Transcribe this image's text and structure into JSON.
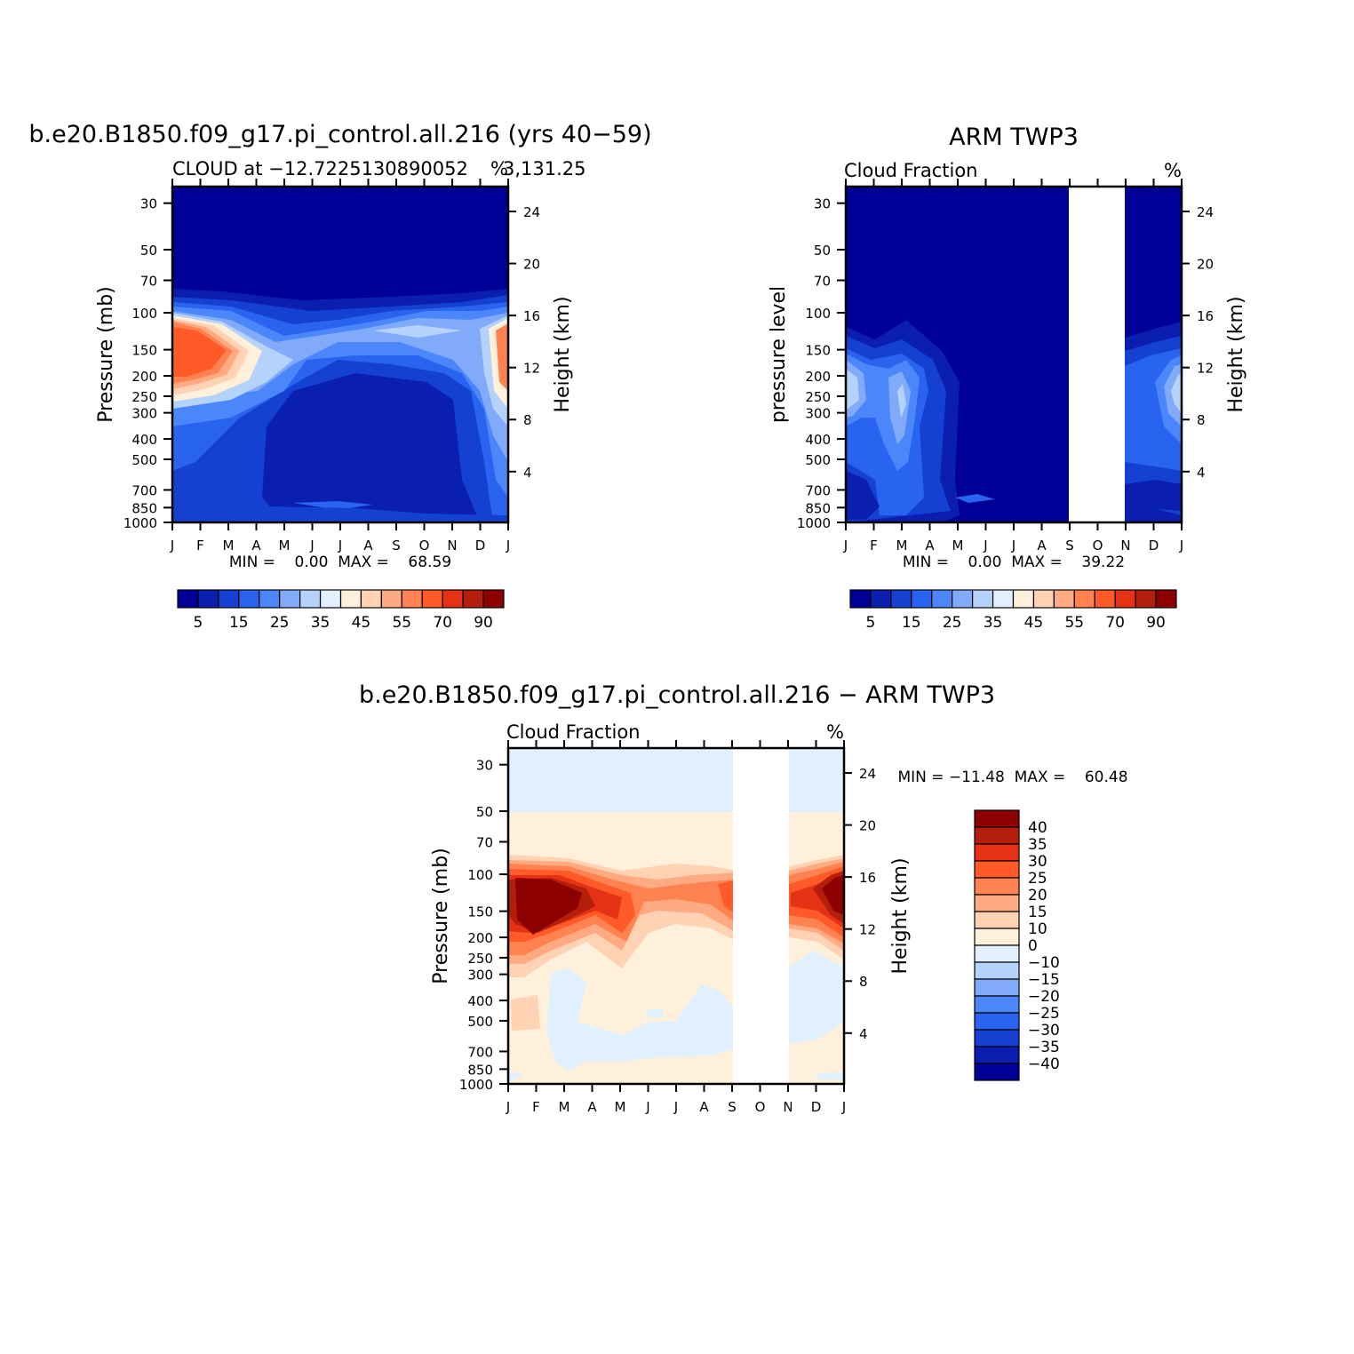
{
  "chart_data": [
    {
      "type": "heatmap",
      "title": "b.e20.B1850.f09_g17.pi_control.all.216 (yrs 40−59)",
      "left_label": "CLOUD at −12.7225130890052",
      "right_label": "%",
      "coords_suffix": "3,131.25",
      "ylabel": "Pressure (mb)",
      "y2label": "Height (km)",
      "x_ticks": [
        "J",
        "F",
        "M",
        "A",
        "M",
        "J",
        "J",
        "A",
        "S",
        "O",
        "N",
        "D",
        "J"
      ],
      "y_ticks": [
        30,
        50,
        70,
        100,
        150,
        200,
        250,
        300,
        400,
        500,
        700,
        850,
        1000
      ],
      "y2_ticks": [
        24,
        20,
        16,
        12,
        8,
        4
      ],
      "stats": "MIN =    0.00  MAX =    68.59",
      "colorbar": {
        "labels": [
          "5",
          "15",
          "25",
          "35",
          "45",
          "55",
          "70",
          "90"
        ],
        "colors": [
          "#000096",
          "#0a1eaf",
          "#1541d2",
          "#2864f0",
          "#4b87fa",
          "#82aafa",
          "#b4d2fa",
          "#e1f0ff",
          "#fff0dc",
          "#ffd2b4",
          "#ffaa82",
          "#ff8250",
          "#ff5a28",
          "#e63214",
          "#b41e0a",
          "#8c0000"
        ]
      },
      "missing_months": []
    },
    {
      "type": "heatmap",
      "title": "ARM TWP3",
      "left_label": "Cloud Fraction",
      "right_label": "%",
      "ylabel": "pressure level",
      "y2label": "Height (km)",
      "x_ticks": [
        "J",
        "F",
        "M",
        "A",
        "M",
        "J",
        "J",
        "A",
        "S",
        "O",
        "N",
        "D",
        "J"
      ],
      "y_ticks": [
        30,
        50,
        70,
        100,
        150,
        200,
        250,
        300,
        400,
        500,
        700,
        850,
        1000
      ],
      "y2_ticks": [
        24,
        20,
        16,
        12,
        8,
        4
      ],
      "stats": "MIN =    0.00  MAX =    39.22",
      "colorbar": {
        "labels": [
          "5",
          "15",
          "25",
          "35",
          "45",
          "55",
          "70",
          "90"
        ],
        "colors": [
          "#000096",
          "#0a1eaf",
          "#1541d2",
          "#2864f0",
          "#4b87fa",
          "#82aafa",
          "#b4d2fa",
          "#e1f0ff",
          "#fff0dc",
          "#ffd2b4",
          "#ffaa82",
          "#ff8250",
          "#ff5a28",
          "#e63214",
          "#b41e0a",
          "#8c0000"
        ]
      },
      "missing_months": [
        "Sep",
        "Oct"
      ]
    },
    {
      "type": "heatmap",
      "title": "b.e20.B1850.f09_g17.pi_control.all.216 − ARM TWP3",
      "left_label": "Cloud Fraction",
      "right_label": "%",
      "ylabel": "Pressure (mb)",
      "y2label": "Height (km)",
      "x_ticks": [
        "J",
        "F",
        "M",
        "A",
        "M",
        "J",
        "J",
        "A",
        "S",
        "O",
        "N",
        "D",
        "J"
      ],
      "y_ticks": [
        30,
        50,
        70,
        100,
        150,
        200,
        250,
        300,
        400,
        500,
        700,
        850,
        1000
      ],
      "y2_ticks": [
        24,
        20,
        16,
        12,
        8,
        4
      ],
      "stats": "MIN = −11.48  MAX =    60.48",
      "colorbar": {
        "labels": [
          "40",
          "35",
          "30",
          "25",
          "20",
          "15",
          "10",
          "0",
          "−10",
          "−15",
          "−20",
          "−25",
          "−30",
          "−35",
          "−40"
        ],
        "colors": [
          "#8c0000",
          "#b41e0a",
          "#e63214",
          "#ff5a28",
          "#ff8250",
          "#ffaa82",
          "#ffd2b4",
          "#fff0dc",
          "#e1f0ff",
          "#b4d2fa",
          "#82aafa",
          "#4b87fa",
          "#2864f0",
          "#1541d2",
          "#0a1eaf",
          "#000096"
        ]
      },
      "missing_months": [
        "Sep",
        "Oct"
      ]
    }
  ]
}
